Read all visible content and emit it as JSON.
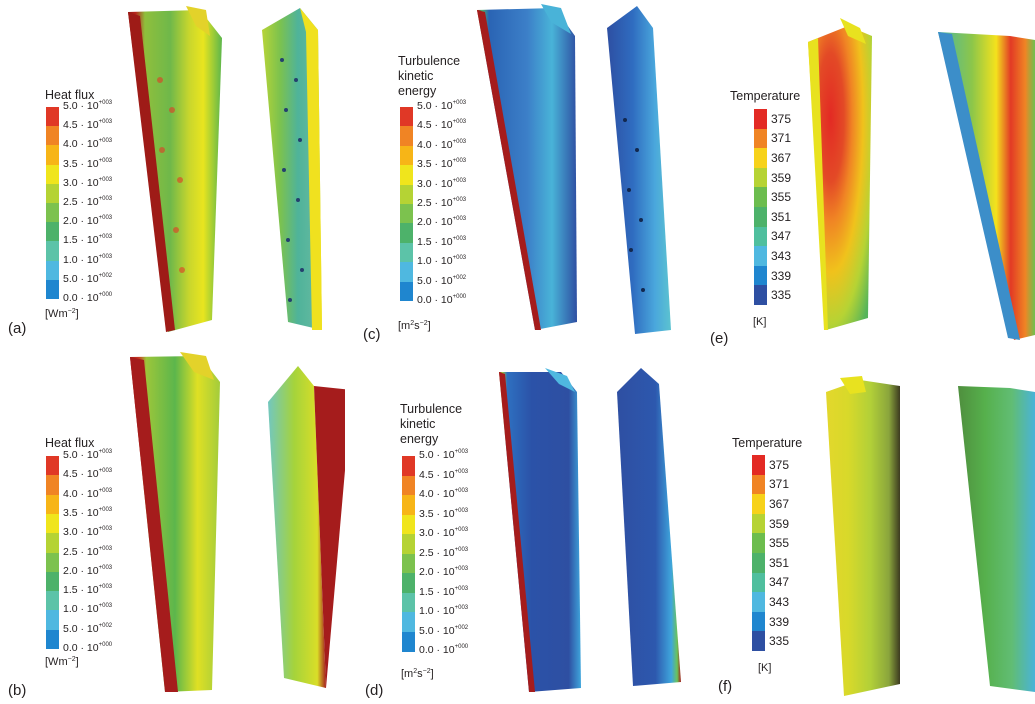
{
  "panels": [
    {
      "label": "(a)",
      "legend_title": "Heat flux",
      "unit_base": "[Wm",
      "unit_sup": "−2",
      "unit_end": "]",
      "ticks": [
        [
          "5.0 · 10",
          "+003"
        ],
        [
          "4.5 · 10",
          "+003"
        ],
        [
          "4.0 · 10",
          "+003"
        ],
        [
          "3.5 · 10",
          "+003"
        ],
        [
          "3.0 · 10",
          "+003"
        ],
        [
          "2.5 · 10",
          "+003"
        ],
        [
          "2.0 · 10",
          "+003"
        ],
        [
          "1.5 · 10",
          "+003"
        ],
        [
          "1.0 · 10",
          "+003"
        ],
        [
          "5.0 · 10",
          "+002"
        ],
        [
          "0.0 · 10",
          "+000"
        ]
      ]
    },
    {
      "label": "(b)",
      "legend_title": "Heat flux",
      "unit_base": "[Wm",
      "unit_sup": "−2",
      "unit_end": "]",
      "ticks": [
        [
          "5.0 · 10",
          "+003"
        ],
        [
          "4.5 · 10",
          "+003"
        ],
        [
          "4.0 · 10",
          "+003"
        ],
        [
          "3.5 · 10",
          "+003"
        ],
        [
          "3.0 · 10",
          "+003"
        ],
        [
          "2.5 · 10",
          "+003"
        ],
        [
          "2.0 · 10",
          "+003"
        ],
        [
          "1.5 · 10",
          "+003"
        ],
        [
          "1.0 · 10",
          "+003"
        ],
        [
          "5.0 · 10",
          "+002"
        ],
        [
          "0.0 · 10",
          "+000"
        ]
      ]
    },
    {
      "label": "(c)",
      "legend_title_lines": [
        "Turbulence",
        "kinetic",
        "energy"
      ],
      "unit_base": "[m",
      "unit_sup": "2",
      "unit_mid": "s",
      "unit_sup2": "−2",
      "unit_end": "]",
      "ticks": [
        [
          "5.0 · 10",
          "+003"
        ],
        [
          "4.5 · 10",
          "+003"
        ],
        [
          "4.0 · 10",
          "+003"
        ],
        [
          "3.5 · 10",
          "+003"
        ],
        [
          "3.0 · 10",
          "+003"
        ],
        [
          "2.5 · 10",
          "+003"
        ],
        [
          "2.0 · 10",
          "+003"
        ],
        [
          "1.5 · 10",
          "+003"
        ],
        [
          "1.0 · 10",
          "+003"
        ],
        [
          "5.0 · 10",
          "+002"
        ],
        [
          "0.0 · 10",
          "+000"
        ]
      ]
    },
    {
      "label": "(d)",
      "legend_title_lines": [
        "Turbulence",
        "kinetic",
        "energy"
      ],
      "unit_base": "[m",
      "unit_sup": "2",
      "unit_mid": "s",
      "unit_sup2": "−2",
      "unit_end": "]",
      "ticks": [
        [
          "5.0 · 10",
          "+003"
        ],
        [
          "4.5 · 10",
          "+003"
        ],
        [
          "4.0 · 10",
          "+003"
        ],
        [
          "3.5 · 10",
          "+003"
        ],
        [
          "3.0 · 10",
          "+003"
        ],
        [
          "2.5 · 10",
          "+003"
        ],
        [
          "2.0 · 10",
          "+003"
        ],
        [
          "1.5 · 10",
          "+003"
        ],
        [
          "1.0 · 10",
          "+003"
        ],
        [
          "5.0 · 10",
          "+002"
        ],
        [
          "0.0 · 10",
          "+000"
        ]
      ]
    },
    {
      "label": "(e)",
      "legend_title": "Temperature",
      "unit": "[K]",
      "ticks": [
        "375",
        "371",
        "367",
        "359",
        "355",
        "351",
        "347",
        "343",
        "339",
        "335"
      ]
    },
    {
      "label": "(f)",
      "legend_title": "Temperature",
      "unit": "[K]",
      "ticks": [
        "375",
        "371",
        "367",
        "359",
        "355",
        "351",
        "347",
        "343",
        "339",
        "335"
      ]
    }
  ],
  "colors": {
    "scale": [
      "#2e4fa2",
      "#1f86cf",
      "#4fb8e0",
      "#5cc3a8",
      "#4db26a",
      "#7cc24e",
      "#b5d334",
      "#f0e51c",
      "#f7b517",
      "#f08424",
      "#e03826"
    ],
    "dark_red": "#a51c1c"
  }
}
